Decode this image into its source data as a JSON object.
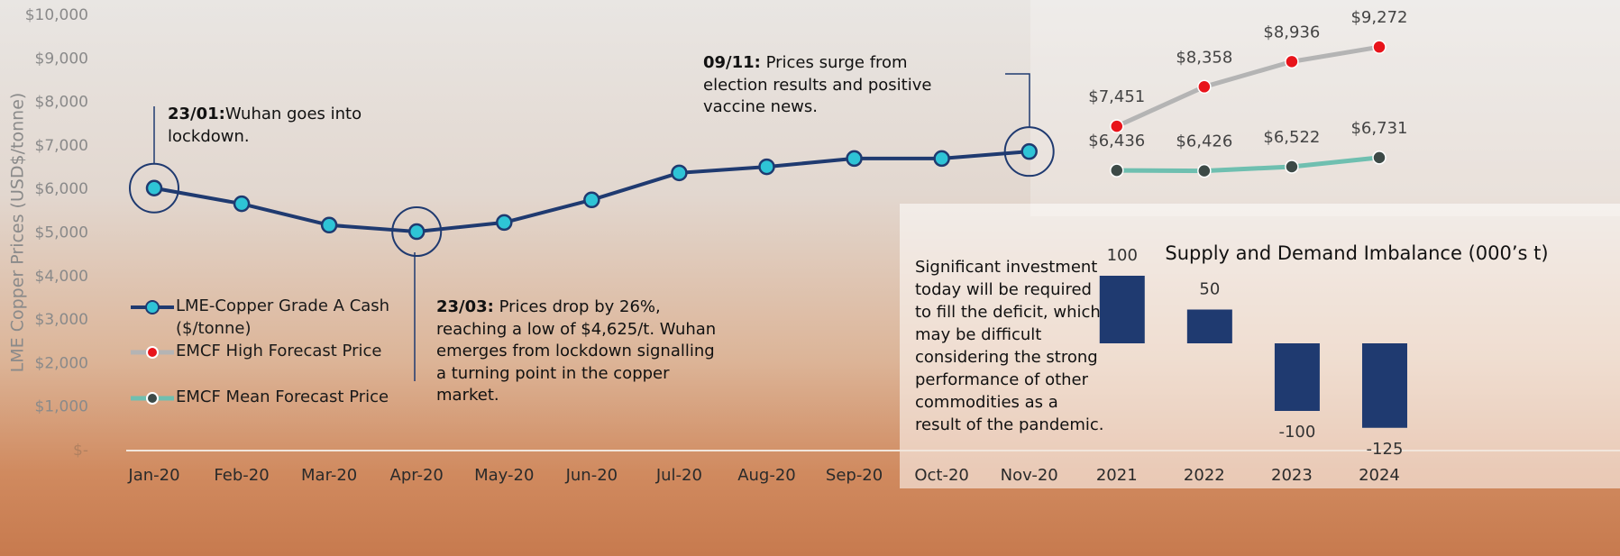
{
  "chart_data": [
    {
      "type": "line",
      "y_label": "LME Copper Prices (USD$/tonne)",
      "categories": [
        "Jan-20",
        "Feb-20",
        "Mar-20",
        "Apr-20",
        "May-20",
        "Jun-20",
        "Jul-20",
        "Aug-20",
        "Sep-20",
        "Oct-20",
        "Nov-20",
        "2021",
        "2022",
        "2023",
        "2024"
      ],
      "ylim": [
        0,
        10000
      ],
      "yticks": [
        {
          "value": 0,
          "label": "$-"
        },
        {
          "value": 1000,
          "label": "$1,000"
        },
        {
          "value": 2000,
          "label": "$2,000"
        },
        {
          "value": 3000,
          "label": "$3,000"
        },
        {
          "value": 4000,
          "label": "$4,000"
        },
        {
          "value": 5000,
          "label": "$5,000"
        },
        {
          "value": 6000,
          "label": "$6,000"
        },
        {
          "value": 7000,
          "label": "$7,000"
        },
        {
          "value": 8000,
          "label": "$8,000"
        },
        {
          "value": 9000,
          "label": "$9,000"
        },
        {
          "value": 10000,
          "label": "$10,000"
        }
      ],
      "series": [
        {
          "name": "LME-Copper Grade A Cash ($/tonne)",
          "color": "#1f3a70",
          "marker_color": "#2ec4d6",
          "values": [
            6030,
            5670,
            5180,
            5030,
            5240,
            5760,
            6380,
            6520,
            6710,
            6710,
            6870,
            null,
            null,
            null,
            null
          ]
        },
        {
          "name": "EMCF High Forecast Price",
          "color": "#b4b4b4",
          "marker_color": "#e8141b",
          "values": [
            null,
            null,
            null,
            null,
            null,
            null,
            null,
            null,
            null,
            null,
            null,
            7451,
            8358,
            8936,
            9272
          ],
          "value_labels": [
            null,
            null,
            null,
            null,
            null,
            null,
            null,
            null,
            null,
            null,
            null,
            "$7,451",
            "$8,358",
            "$8,936",
            "$9,272"
          ]
        },
        {
          "name": "EMCF Mean Forecast Price",
          "color": "#6fbfb0",
          "marker_color": "#3d4a47",
          "values": [
            null,
            null,
            null,
            null,
            null,
            null,
            null,
            null,
            null,
            null,
            null,
            6436,
            6426,
            6522,
            6731
          ],
          "value_labels": [
            null,
            null,
            null,
            null,
            null,
            null,
            null,
            null,
            null,
            null,
            null,
            "$6,436",
            "$6,426",
            "$6,522",
            "$6,731"
          ]
        }
      ],
      "annotations": [
        {
          "bold": "23/01:",
          "text": "Wuhan goes into lockdown."
        },
        {
          "bold": "23/03:",
          "text": " Prices drop by 26%, reaching a low of $4,625/t. Wuhan emerges from lockdown signalling a turning point in the copper market."
        },
        {
          "bold": "09/11:",
          "text": " Prices surge from election results and positive vaccine news."
        }
      ]
    },
    {
      "type": "bar",
      "title": "Supply and Demand Imbalance (000’s t)",
      "categories": [
        "2021",
        "2022",
        "2023",
        "2024"
      ],
      "values": [
        100,
        50,
        -100,
        -125
      ],
      "color": "#1f3a70",
      "ylim": [
        -150,
        110
      ],
      "note": "Significant investment today will be required to fill the deficit,  which may be difficult considering the strong performance of other commodities as a result of the pandemic."
    }
  ]
}
